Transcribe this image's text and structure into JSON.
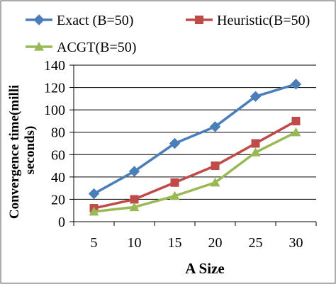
{
  "chart_data": {
    "type": "line",
    "title": "",
    "xlabel": "A  Size",
    "ylabel_lines": [
      "Convergence time(milli",
      "seconds)"
    ],
    "categories": [
      "5",
      "10",
      "15",
      "20",
      "25",
      "30"
    ],
    "ylim": [
      0,
      140
    ],
    "yticks": [
      0,
      20,
      40,
      60,
      80,
      100,
      120,
      140
    ],
    "grid": "horizontal",
    "legend_position": "top",
    "series": [
      {
        "name": "Exact (B=50)",
        "values": [
          25,
          45,
          70,
          85,
          112,
          123
        ],
        "color": "#4a7ebb",
        "marker": "diamond"
      },
      {
        "name": "Heuristic(B=50)",
        "values": [
          12,
          20,
          35,
          50,
          70,
          90
        ],
        "color": "#be4b48",
        "marker": "square"
      },
      {
        "name": "ACGT(B=50)",
        "values": [
          9,
          13,
          23,
          35,
          62,
          80
        ],
        "color": "#98b954",
        "marker": "triangle"
      }
    ]
  }
}
